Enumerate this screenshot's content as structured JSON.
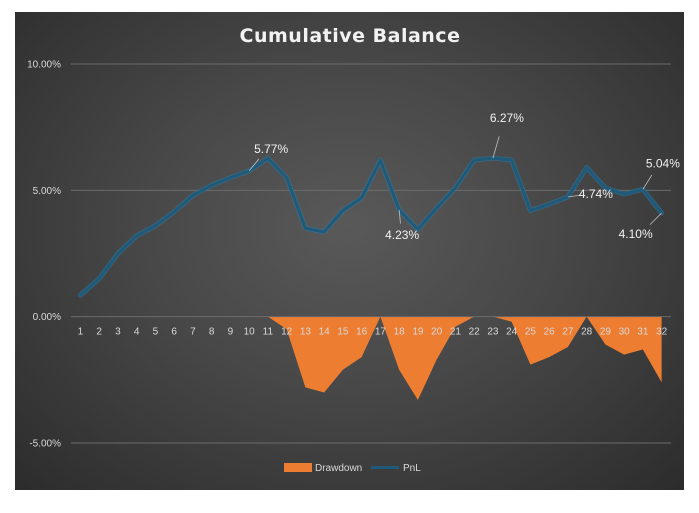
{
  "chart_data": {
    "type": "line",
    "title": "Cumulative Balance",
    "xlabel": "",
    "ylabel": "",
    "ylim": [
      -5,
      10
    ],
    "yticks": [
      10,
      5,
      0,
      -5
    ],
    "ytick_labels": [
      "10.00%",
      "5.00%",
      "0.00%",
      "-5.00%"
    ],
    "categories": [
      "1",
      "2",
      "3",
      "4",
      "5",
      "6",
      "7",
      "8",
      "9",
      "10",
      "11",
      "12",
      "13",
      "14",
      "15",
      "16",
      "17",
      "18",
      "19",
      "20",
      "21",
      "22",
      "23",
      "24",
      "25",
      "26",
      "27",
      "28",
      "29",
      "30",
      "31",
      "32"
    ],
    "series": [
      {
        "name": "Drawdown",
        "type": "area",
        "color": "#ed7d31",
        "values": [
          0,
          0,
          0,
          0,
          0,
          0,
          0,
          0,
          0,
          0,
          0,
          -0.5,
          -2.8,
          -3.0,
          -2.1,
          -1.6,
          0,
          -2.1,
          -3.3,
          -1.7,
          -0.4,
          0,
          0,
          -0.2,
          -1.9,
          -1.6,
          -1.2,
          0,
          -1.1,
          -1.5,
          -1.3,
          -2.6
        ]
      },
      {
        "name": "PnL",
        "type": "line",
        "color": "#1f5a7a",
        "values": [
          0.85,
          1.5,
          2.5,
          3.2,
          3.6,
          4.15,
          4.8,
          5.2,
          5.5,
          5.77,
          6.27,
          5.5,
          3.5,
          3.35,
          4.2,
          4.7,
          6.2,
          4.23,
          3.45,
          4.3,
          5.1,
          6.2,
          6.27,
          6.2,
          4.2,
          4.45,
          4.74,
          5.9,
          5.1,
          4.85,
          5.04,
          4.1
        ]
      }
    ],
    "data_labels": [
      {
        "index": 9,
        "text": "5.77%"
      },
      {
        "index": 17,
        "text": "4.23%"
      },
      {
        "index": 22,
        "text": "6.27%"
      },
      {
        "index": 26,
        "text": "4.74%"
      },
      {
        "index": 30,
        "text": "5.04%"
      },
      {
        "index": 31,
        "text": "4.10%"
      }
    ],
    "legend": [
      "Drawdown",
      "PnL"
    ],
    "legend_position": "bottom",
    "grid": true
  },
  "colors": {
    "gridline": "#6b6b6b",
    "drawdown": "#ed7d31",
    "pnl_line": "#1f5a7a",
    "pnl_edge": "#2e7aa3"
  }
}
